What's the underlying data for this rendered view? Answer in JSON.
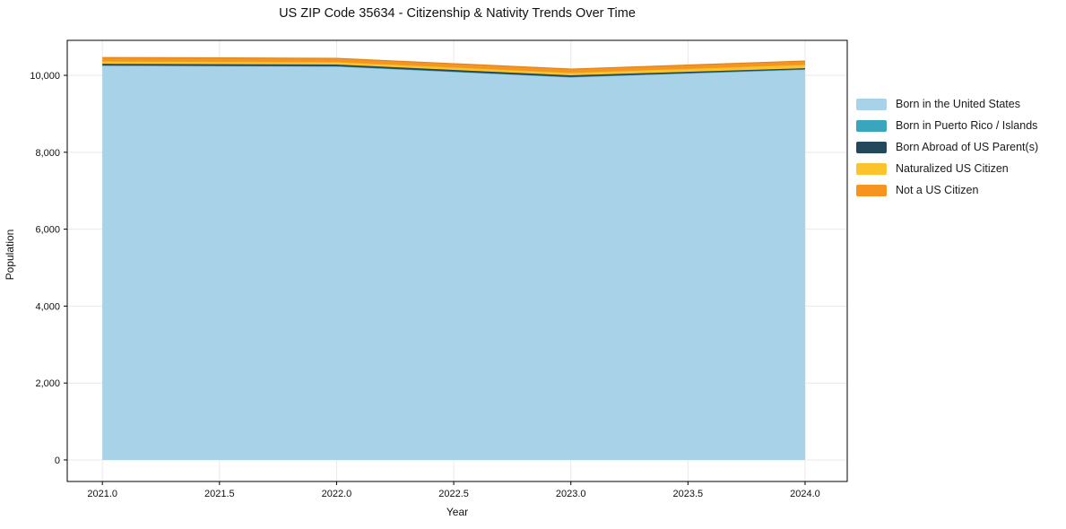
{
  "figure": {
    "background": "#ffffff"
  },
  "chart_data": {
    "type": "area",
    "stacked": true,
    "title": "US ZIP Code 35634 - Citizenship & Nativity Trends Over Time",
    "xlabel": "Year",
    "ylabel": "Population",
    "x": [
      2021,
      2022,
      2023,
      2024
    ],
    "series": [
      {
        "name": "Born in the United States",
        "color": "#a8d2e8",
        "values": [
          10250,
          10230,
          9950,
          10150
        ]
      },
      {
        "name": "Born in Puerto Rico / Islands",
        "color": "#3aa6bd",
        "values": [
          10,
          10,
          10,
          10
        ]
      },
      {
        "name": "Born Abroad of US Parent(s)",
        "color": "#23485c",
        "values": [
          40,
          40,
          40,
          25
        ]
      },
      {
        "name": "Naturalized US Citizen",
        "color": "#fcc32d",
        "values": [
          70,
          70,
          70,
          95
        ]
      },
      {
        "name": "Not a US Citizen",
        "color": "#f7941f",
        "values": [
          95,
          95,
          95,
          95
        ]
      }
    ],
    "xticks": [
      2021.0,
      2021.5,
      2022.0,
      2022.5,
      2023.0,
      2023.5,
      2024.0
    ],
    "xtick_labels": [
      "2021.0",
      "2021.5",
      "2022.0",
      "2022.5",
      "2023.0",
      "2023.5",
      "2024.0"
    ],
    "yticks": [
      0,
      2000,
      4000,
      6000,
      8000,
      10000
    ],
    "ytick_labels": [
      "0",
      "2,000",
      "4,000",
      "6,000",
      "8,000",
      "10,000"
    ],
    "xlim": [
      2020.85,
      2024.18
    ],
    "ylim": [
      -560,
      10910
    ],
    "grid": true,
    "grid_color": "#e9e9e9",
    "spine_color": "#000000",
    "legend_position": "outside-right"
  }
}
